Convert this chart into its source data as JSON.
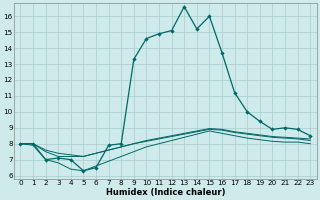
{
  "xlabel": "Humidex (Indice chaleur)",
  "background_color": "#ceeaea",
  "grid_color": "#aacccc",
  "line_color": "#006868",
  "x_ticks": [
    0,
    1,
    2,
    3,
    4,
    5,
    6,
    7,
    8,
    9,
    10,
    11,
    12,
    13,
    14,
    15,
    16,
    17,
    18,
    19,
    20,
    21,
    22,
    23
  ],
  "y_ticks": [
    6,
    7,
    8,
    9,
    10,
    11,
    12,
    13,
    14,
    15,
    16
  ],
  "ylim": [
    5.8,
    16.8
  ],
  "xlim": [
    -0.5,
    23.5
  ],
  "line1_x": [
    0,
    1,
    2,
    3,
    4,
    5,
    6,
    7,
    8,
    9,
    10,
    11,
    12,
    13,
    14,
    15,
    16,
    17,
    18,
    19,
    20,
    21,
    22,
    23
  ],
  "line1_y": [
    8.0,
    8.0,
    7.0,
    7.1,
    7.0,
    6.3,
    6.5,
    7.9,
    8.0,
    13.3,
    14.6,
    14.9,
    15.1,
    16.6,
    15.2,
    16.0,
    13.7,
    11.2,
    10.0,
    9.4,
    8.9,
    9.0,
    8.9,
    8.5
  ],
  "line2_x": [
    0,
    1,
    2,
    3,
    4,
    5,
    6,
    7,
    8,
    9,
    10,
    11,
    12,
    13,
    14,
    15,
    16,
    17,
    18,
    19,
    20,
    21,
    22,
    23
  ],
  "line2_y": [
    8.0,
    8.0,
    7.5,
    7.2,
    7.2,
    7.2,
    7.4,
    7.6,
    7.8,
    8.0,
    8.2,
    8.35,
    8.5,
    8.65,
    8.8,
    8.95,
    8.9,
    8.75,
    8.65,
    8.55,
    8.45,
    8.4,
    8.35,
    8.3
  ],
  "line3_x": [
    0,
    1,
    2,
    3,
    4,
    5,
    6,
    7,
    8,
    9,
    10,
    11,
    12,
    13,
    14,
    15,
    16,
    17,
    18,
    19,
    20,
    21,
    22,
    23
  ],
  "line3_y": [
    8.0,
    7.9,
    7.0,
    6.8,
    6.4,
    6.3,
    6.6,
    6.9,
    7.2,
    7.5,
    7.8,
    8.0,
    8.2,
    8.4,
    8.6,
    8.8,
    8.65,
    8.5,
    8.35,
    8.25,
    8.15,
    8.1,
    8.1,
    8.0
  ],
  "line4_x": [
    0,
    1,
    2,
    3,
    4,
    5,
    6,
    7,
    8,
    9,
    10,
    11,
    12,
    13,
    14,
    15,
    16,
    17,
    18,
    19,
    20,
    21,
    22,
    23
  ],
  "line4_y": [
    8.0,
    8.0,
    7.6,
    7.4,
    7.3,
    7.2,
    7.4,
    7.6,
    7.8,
    8.0,
    8.15,
    8.3,
    8.45,
    8.6,
    8.75,
    8.9,
    8.85,
    8.7,
    8.6,
    8.5,
    8.4,
    8.35,
    8.3,
    8.2
  ],
  "xlabel_fontsize": 6.0,
  "tick_fontsize": 5.2
}
